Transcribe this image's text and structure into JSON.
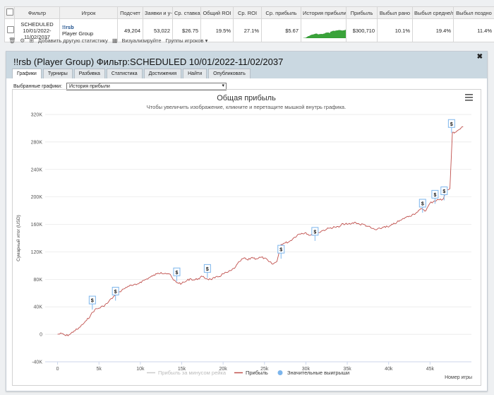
{
  "table": {
    "headers": [
      "Фильтр",
      "Игрок",
      "Подсчет",
      "Заявки и у-",
      "Ср. ставка",
      "Общий ROI",
      "Ср. ROI",
      "Ср. прибыль",
      "История прибыли",
      "Прибыль",
      "Выбыл рано",
      "Выбыл средне/п",
      "Выбыл поздно"
    ],
    "row": {
      "filter": [
        "SCHEDULED",
        "10/01/2022-",
        "11/02/2037"
      ],
      "player_name": "!!rsb",
      "player_group": "Player Group",
      "count": "49,204",
      "entries": "53,022",
      "avg_stake": "$26.75",
      "total_roi": "19.5%",
      "avg_roi": "27.1%",
      "avg_profit": "$5.67",
      "profit": "$300,710",
      "out_early": "10.1%",
      "out_mid": "19.4%",
      "out_late": "11.4%"
    }
  },
  "toolbar": {
    "add_stat": "Добавить другую статистику",
    "visualize": "Визуализируйте",
    "player_groups": "Группы игроков"
  },
  "panel": {
    "title": "!!rsb (Player Group) Фильтр:SCHEDULED 10/01/2022-11/02/2037",
    "tabs": [
      "Графики",
      "Турниры",
      "Разбивка",
      "Статистика",
      "Достижения",
      "Найти",
      "Опубликовать"
    ],
    "active_tab": "Графики",
    "select_label": "Выбранные графики:",
    "select_value": "История прибыли"
  },
  "colors": {
    "profit": "#c0504d",
    "big_win": "#7cb5ec",
    "header_bg": "#cad8e1",
    "spark": "#3aa33a"
  },
  "chart_data": {
    "type": "line",
    "title": "Общая прибыль",
    "subtitle": "Чтобы увеличить изображение, кликните и перетащите мышкой внутрь графика.",
    "ylabel": "Сумарный итог (USD)",
    "xlabel": "Номер игры",
    "ylim": [
      -40000,
      320000
    ],
    "xlim": [
      -1500,
      50000
    ],
    "y_ticks": [
      "-40K",
      "0",
      "40K",
      "80K",
      "120K",
      "160K",
      "200K",
      "240K",
      "280K",
      "320K"
    ],
    "x_ticks": [
      "0",
      "5k",
      "10k",
      "15k",
      "20k",
      "25k",
      "30k",
      "35k",
      "40k",
      "45k"
    ],
    "series": [
      {
        "name": "Прибыль",
        "x": [
          0,
          500,
          1000,
          1500,
          2000,
          2500,
          3000,
          3500,
          4000,
          4500,
          5000,
          5500,
          6000,
          6500,
          7000,
          7500,
          8000,
          8500,
          9000,
          9500,
          10000,
          10500,
          11000,
          11500,
          12000,
          12500,
          13000,
          13500,
          14000,
          14500,
          15000,
          15500,
          16000,
          16500,
          17000,
          17500,
          18000,
          18500,
          19000,
          19500,
          20000,
          20500,
          21000,
          21500,
          22000,
          22500,
          23000,
          23500,
          24000,
          24500,
          25000,
          25500,
          26000,
          26500,
          27000,
          27500,
          28000,
          28500,
          29000,
          29500,
          30000,
          30500,
          31000,
          31500,
          32000,
          32500,
          33000,
          33500,
          34000,
          34500,
          35000,
          35500,
          36000,
          36500,
          37000,
          37500,
          38000,
          38500,
          39000,
          39500,
          40000,
          40500,
          41000,
          41500,
          42000,
          42500,
          43000,
          43500,
          44000,
          44500,
          45000,
          45500,
          46000,
          46500,
          47000,
          47400,
          47700,
          48000,
          48500,
          49000
        ],
        "values": [
          0,
          1000,
          -2000,
          0,
          5000,
          8000,
          14000,
          20000,
          28000,
          36000,
          38000,
          41000,
          45000,
          52000,
          57000,
          62000,
          66000,
          70000,
          71000,
          72000,
          76000,
          79000,
          82000,
          85000,
          88000,
          90000,
          89000,
          88000,
          79000,
          75000,
          74000,
          77000,
          81000,
          79000,
          81000,
          84000,
          81000,
          80000,
          82000,
          84000,
          88000,
          90000,
          93000,
          98000,
          106000,
          111000,
          108000,
          112000,
          110000,
          112000,
          111000,
          106000,
          102000,
          106000,
          131000,
          133000,
          135000,
          140000,
          145000,
          147000,
          148000,
          144000,
          146000,
          148000,
          151000,
          153000,
          155000,
          156000,
          156000,
          161000,
          160000,
          161000,
          163000,
          160000,
          160000,
          157000,
          154000,
          152000,
          154000,
          157000,
          156000,
          160000,
          163000,
          166000,
          170000,
          172000,
          175000,
          178000,
          183000,
          180000,
          191000,
          194000,
          196000,
          196000,
          209000,
          212000,
          293000,
          294000,
          298000,
          302000
        ]
      },
      {
        "name": "Прибыль за минусом рейка"
      },
      {
        "name": "Значительные выигрыши",
        "x": [
          4200,
          7000,
          14400,
          18100,
          27000,
          31100,
          44100,
          45600,
          46700,
          47600
        ],
        "values": [
          36000,
          49000,
          77000,
          82000,
          110000,
          136000,
          177000,
          190000,
          195000,
          293000
        ]
      }
    ],
    "legend": [
      "Прибыль за минусом рейка",
      "Прибыль",
      "Значительные выигрыши"
    ],
    "marker_symbol": "$"
  }
}
